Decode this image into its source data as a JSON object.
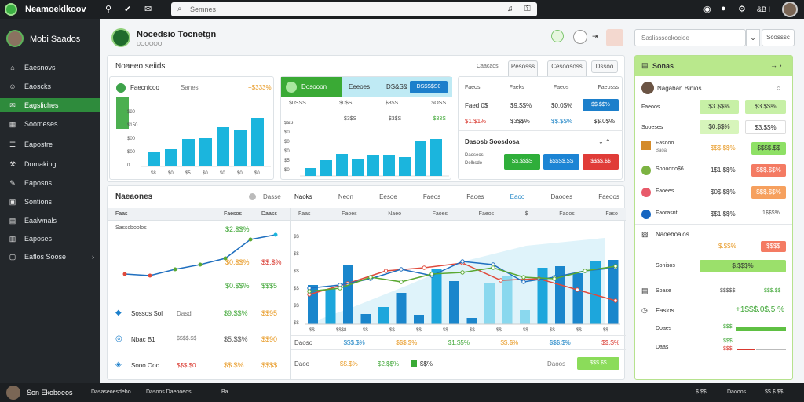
{
  "app": {
    "title": "Neamoeklkoov"
  },
  "topbar": {
    "search_placeholder": "Semnes",
    "right_label": "&B I"
  },
  "sidebar": {
    "title": "Mobi Saados",
    "items": [
      {
        "label": "Eaesnovs",
        "icon": "home-icon"
      },
      {
        "label": "Eaoscks",
        "icon": "user-icon"
      },
      {
        "label": "Eagsliches",
        "icon": "chat-icon"
      },
      {
        "label": "Soomeses",
        "icon": "bar-icon"
      },
      {
        "label": "Eapostre",
        "icon": "list-icon"
      },
      {
        "label": "Domaking",
        "icon": "wrench-icon"
      },
      {
        "label": "Eaposns",
        "icon": "tool-icon"
      },
      {
        "label": "Sontions",
        "icon": "mail-icon"
      },
      {
        "label": "Eaalwnals",
        "icon": "grid-icon"
      },
      {
        "label": "Eaposes",
        "icon": "chart-icon"
      },
      {
        "label": "Eaflos Soose",
        "icon": "folder-icon"
      }
    ]
  },
  "header": {
    "title": "Nocedsio Tocnetgn",
    "subtitle": "DOOOOO"
  },
  "header_search": {
    "placeholder": "Saslissscokocioe",
    "button": "Scosssc"
  },
  "overview": {
    "title": "Noaeeo seiids",
    "tabs": [
      "Caacaos",
      "Pesosss",
      "Cesoososs",
      "Dssoo"
    ],
    "card1": {
      "title": "Faecnicoo",
      "label": "Sanes",
      "value": "+$333%",
      "ylabels": [
        "$80",
        "$150",
        "$00",
        "$00",
        "0"
      ],
      "xlabels": [
        "$8",
        "$0",
        "$5",
        "$0",
        "$0",
        "$0",
        "$0",
        "$0"
      ]
    },
    "card2": {
      "tab": "Dosooon",
      "tab2": "Eeeoes",
      "tab3": "DS&S&",
      "btn": "DS$S$S0",
      "cols": [
        "$0SSS",
        "$0$S",
        "$8$S",
        "$OSS"
      ],
      "row2": [
        "$3$S",
        "$3$S",
        "$33S"
      ],
      "ylabels": [
        "$&S",
        "$0",
        "$0",
        "$0",
        "$5",
        "$0"
      ]
    },
    "card3": {
      "cols": [
        "Faeos",
        "Faeks",
        "Faeos",
        "Faeosss"
      ],
      "rows": [
        [
          "Faed 0$",
          "$9.$$%",
          "$0.0$%",
          "$$.$$%"
        ],
        [
          "$1.$1%",
          "$3$$%",
          "$$.$$%",
          "$$.0$%"
        ]
      ],
      "section": "Dasosb Soosdosa",
      "labels": [
        "Daoseos",
        "Delbsdo"
      ],
      "buttons": [
        "S$.$$$S",
        "$$$S$.$S",
        "$$$$.$$"
      ]
    }
  },
  "main_table": {
    "title": "Naeaones",
    "dropdown": "Dasse",
    "left_cols": [
      "Faas",
      "Faesos",
      "Daass"
    ],
    "left_rows": [
      {
        "name": "Sasscboolos",
        "val1": "$2.$$%",
        "val2": ""
      },
      {
        "name": "",
        "val1": "$0.$$%",
        "val2": "$$.$%"
      },
      {
        "name": "",
        "val1": "$0.$$%",
        "val2": "$$$5"
      },
      {
        "name": "Sossos Sol",
        "val1": "Dasd",
        "val2": "$9.$$%",
        "val3": "$$95"
      },
      {
        "name": "Nbac B1",
        "val1": "$$$$.$$",
        "val2": "$5.$$%",
        "val3": "$$90"
      },
      {
        "name": "Sooo Ooc",
        "val1": "$$$.$0",
        "val2": "$$.$%",
        "val3": "$$$$"
      }
    ],
    "right_tabs": [
      "Naoks",
      "Neon",
      "Eesoe",
      "Faeos",
      "Faoes",
      "Eaoo",
      "Daooes",
      "Faeoos"
    ],
    "right_cols": [
      "Faas",
      "Faoes",
      "Naeo",
      "Faoes",
      "Faeos",
      "$",
      "Faoos",
      "Faso"
    ],
    "chart_xlabels": [
      "$$",
      "$$$8",
      "$$",
      "$$",
      "$$",
      "$$",
      "$$",
      "$$",
      "$$",
      "$$",
      "$$",
      "$$"
    ],
    "chart_ylabels": [
      "$$",
      "$$",
      "$$",
      "$$",
      "$$",
      "$$"
    ],
    "footer_labels": [
      "Daoso",
      "$$$.$%",
      "$$$.$%",
      "$1.$5%",
      "$$.$%",
      "$$$.$%",
      "$$.$%"
    ],
    "footer2": [
      "Daoo",
      "$$.$%",
      "$2.$$%",
      "$$%",
      "Daoos"
    ],
    "footer_button": "$$$.$$"
  },
  "right_panel": {
    "header": "Sonas",
    "profile": {
      "name": "Nagaban Binios"
    },
    "rows": [
      {
        "label": "Faeoos",
        "v1": "$3.$$%",
        "v2": "$3.$$%"
      },
      {
        "label": "Sooeses",
        "v1": "$0.$$%",
        "v2": "$3.$$%"
      },
      {
        "label": "Fasooo",
        "sub": "Baoa",
        "v1": "$$$.$$%",
        "v2": "$$$$.$$"
      },
      {
        "label": "Soooono$6",
        "v1": "1$1.$$%",
        "v2": "$$$.$$%"
      },
      {
        "label": "Faoees",
        "v1": "$0$.$$%",
        "v2": "$$$.$$%"
      },
      {
        "label": "Faorasnt",
        "v1": "$$1 $$%",
        "v2": "1$$$%"
      }
    ],
    "section2": {
      "title": "Naoeboalos",
      "rows": [
        {
          "label": "",
          "v1": "$.$$%",
          "v2": "$$$$"
        },
        {
          "label": "Sonisos",
          "v1": "$.$$$%",
          "v2": "$$.$$%"
        },
        {
          "label": "Soase",
          "v1": "$$$$$",
          "v2": "$$$.$$"
        }
      ]
    },
    "section3": {
      "title": "Fasios",
      "value": "+1$$$.0$,5 %",
      "rows": [
        {
          "label": "Doaes",
          "v": "$$$"
        },
        {
          "label": "Daas",
          "v": "$$$",
          "sub": "$$$"
        }
      ]
    }
  },
  "bottombar": {
    "user": "Son Ekoboeos",
    "items": [
      "Dasaseoesdebo",
      "Dasoos  Daeooeos",
      "Ba"
    ],
    "right": [
      "$ $$",
      "Daooos",
      "$$ $ $$"
    ]
  },
  "colors": {
    "accent": "#2e8b3c",
    "bar": "#18b4dc",
    "bar_dark": "#1a7fc4",
    "lime": "#b8e986",
    "red": "#e84a3c"
  },
  "chart_data": [
    {
      "type": "bar",
      "series": [
        {
          "values": [
            18,
            22,
            35,
            36,
            50,
            46,
            62
          ]
        }
      ]
    },
    {
      "type": "bar",
      "series": [
        {
          "values": [
            10,
            20,
            28,
            22,
            27,
            27,
            24,
            44,
            47
          ]
        }
      ]
    },
    {
      "type": "line",
      "series": [
        {
          "values": [
            20,
            18,
            26,
            32,
            40,
            64,
            70
          ]
        }
      ]
    },
    {
      "type": "bar_line",
      "bars": [
        50,
        45,
        75,
        13,
        22,
        40,
        12,
        70,
        55,
        8,
        52,
        61,
        18,
        72,
        74,
        65,
        80,
        82
      ],
      "lines": [
        {
          "color": "#e04a3c",
          "values": [
            38,
            52,
            68,
            72,
            78,
            56,
            58,
            44,
            30
          ]
        },
        {
          "color": "#1f6fbf",
          "values": [
            46,
            50,
            58,
            70,
            62,
            80,
            76,
            54,
            60,
            68,
            72
          ]
        },
        {
          "color": "#5aa832",
          "values": [
            42,
            46,
            60,
            54,
            64,
            66,
            72,
            60,
            58,
            68,
            74
          ]
        }
      ]
    }
  ]
}
